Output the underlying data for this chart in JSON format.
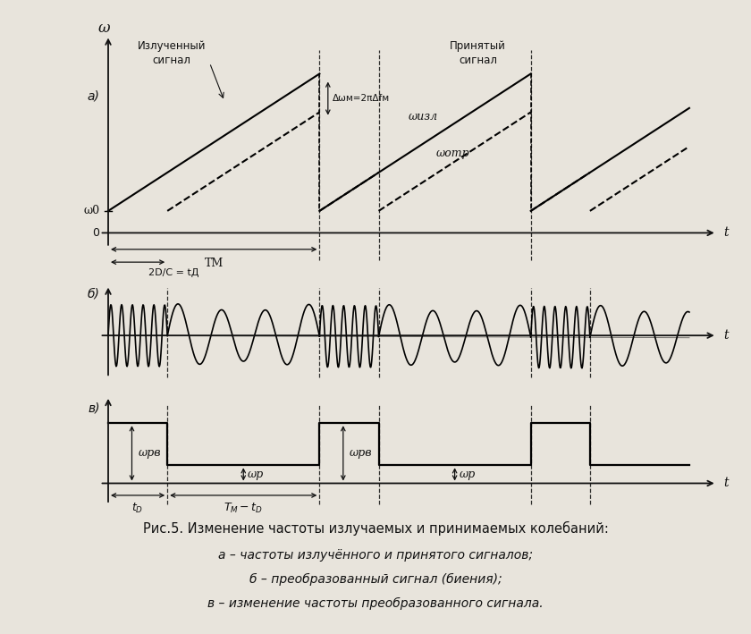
{
  "bg_color": "#e8e4dc",
  "text_color": "#111111",
  "line_color": "#111111",
  "subplot_a_label": "а)",
  "subplot_b_label": "б)",
  "subplot_v_label": "в)",
  "omega_label": "ω",
  "t_label": "t",
  "omega0_label": "ω0",
  "omega_izl_label": "ωизл",
  "omega_otr_label": "ωотр",
  "delta_omega_label": "Δωм=2πΔfм",
  "T_M_label": "TМ",
  "t_D_label": "2D/C = tД",
  "izl_signal_label": "Излученный\nсигнал",
  "prin_signal_label": "Принятый\nсигнал",
  "omega_rb_label": "ωрв",
  "omega_r_label": "ωр",
  "caption_line1": "Рис.5. Изменение частоты излучаемых и принимаемых колебаний:",
  "caption_line2": "а – частоты излучённого и принятого сигналов;",
  "caption_line3": "б – преобразованный сигнал (биения);",
  "caption_line4": "в – изменение частоты преобразованного сигнала."
}
